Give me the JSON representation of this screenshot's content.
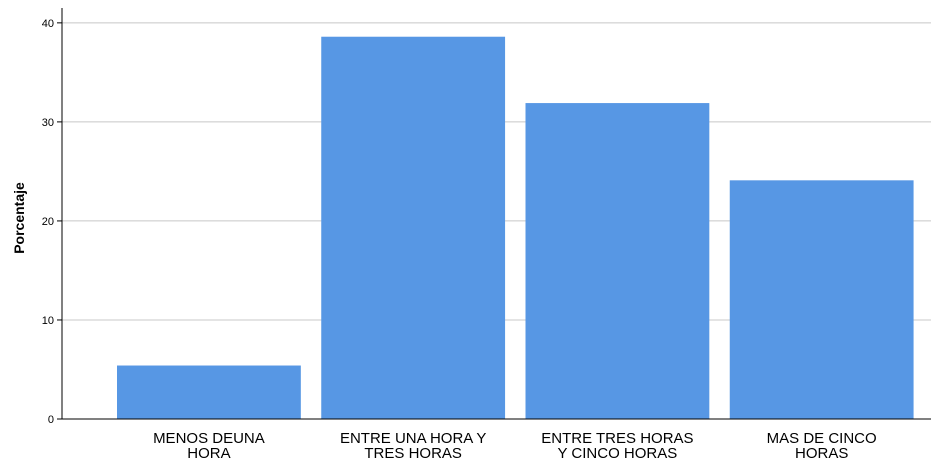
{
  "chart_data": {
    "type": "bar",
    "title": "",
    "xlabel": "",
    "ylabel": "Porcentaje",
    "categories": [
      [
        "MENOS DEUNA",
        "HORA"
      ],
      [
        "ENTRE UNA HORA Y",
        "TRES HORAS"
      ],
      [
        "ENTRE TRES HORAS",
        "Y CINCO HORAS"
      ],
      [
        "MAS DE CINCO",
        "HORAS"
      ]
    ],
    "values": [
      5.4,
      38.6,
      31.9,
      24.1
    ],
    "ylim": [
      0,
      41.5
    ],
    "yticks": [
      0,
      10,
      20,
      30,
      40
    ],
    "grid": true,
    "colors": {
      "bar": "#5797e4",
      "grid": "#c8c8c8",
      "axis": "#000000"
    }
  }
}
